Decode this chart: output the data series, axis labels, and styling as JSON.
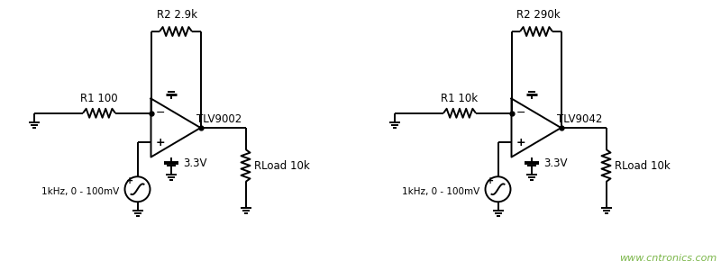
{
  "bg_color": "#ffffff",
  "line_color": "#000000",
  "watermark_color": "#7ab648",
  "watermark_text": "www.cntronics.com",
  "circuit1": {
    "r1_label": "R1 100",
    "r2_label": "R2 2.9k",
    "opamp_label": "TLV9002",
    "source_label": "1kHz, 0 - 100mV",
    "vcc_label": "3.3V",
    "rload_label": "RLoad 10k"
  },
  "circuit2": {
    "r1_label": "R1 10k",
    "r2_label": "R2 290k",
    "opamp_label": "TLV9042",
    "source_label": "1kHz, 0 - 100mV",
    "vcc_label": "3.3V",
    "rload_label": "RLoad 10k"
  }
}
